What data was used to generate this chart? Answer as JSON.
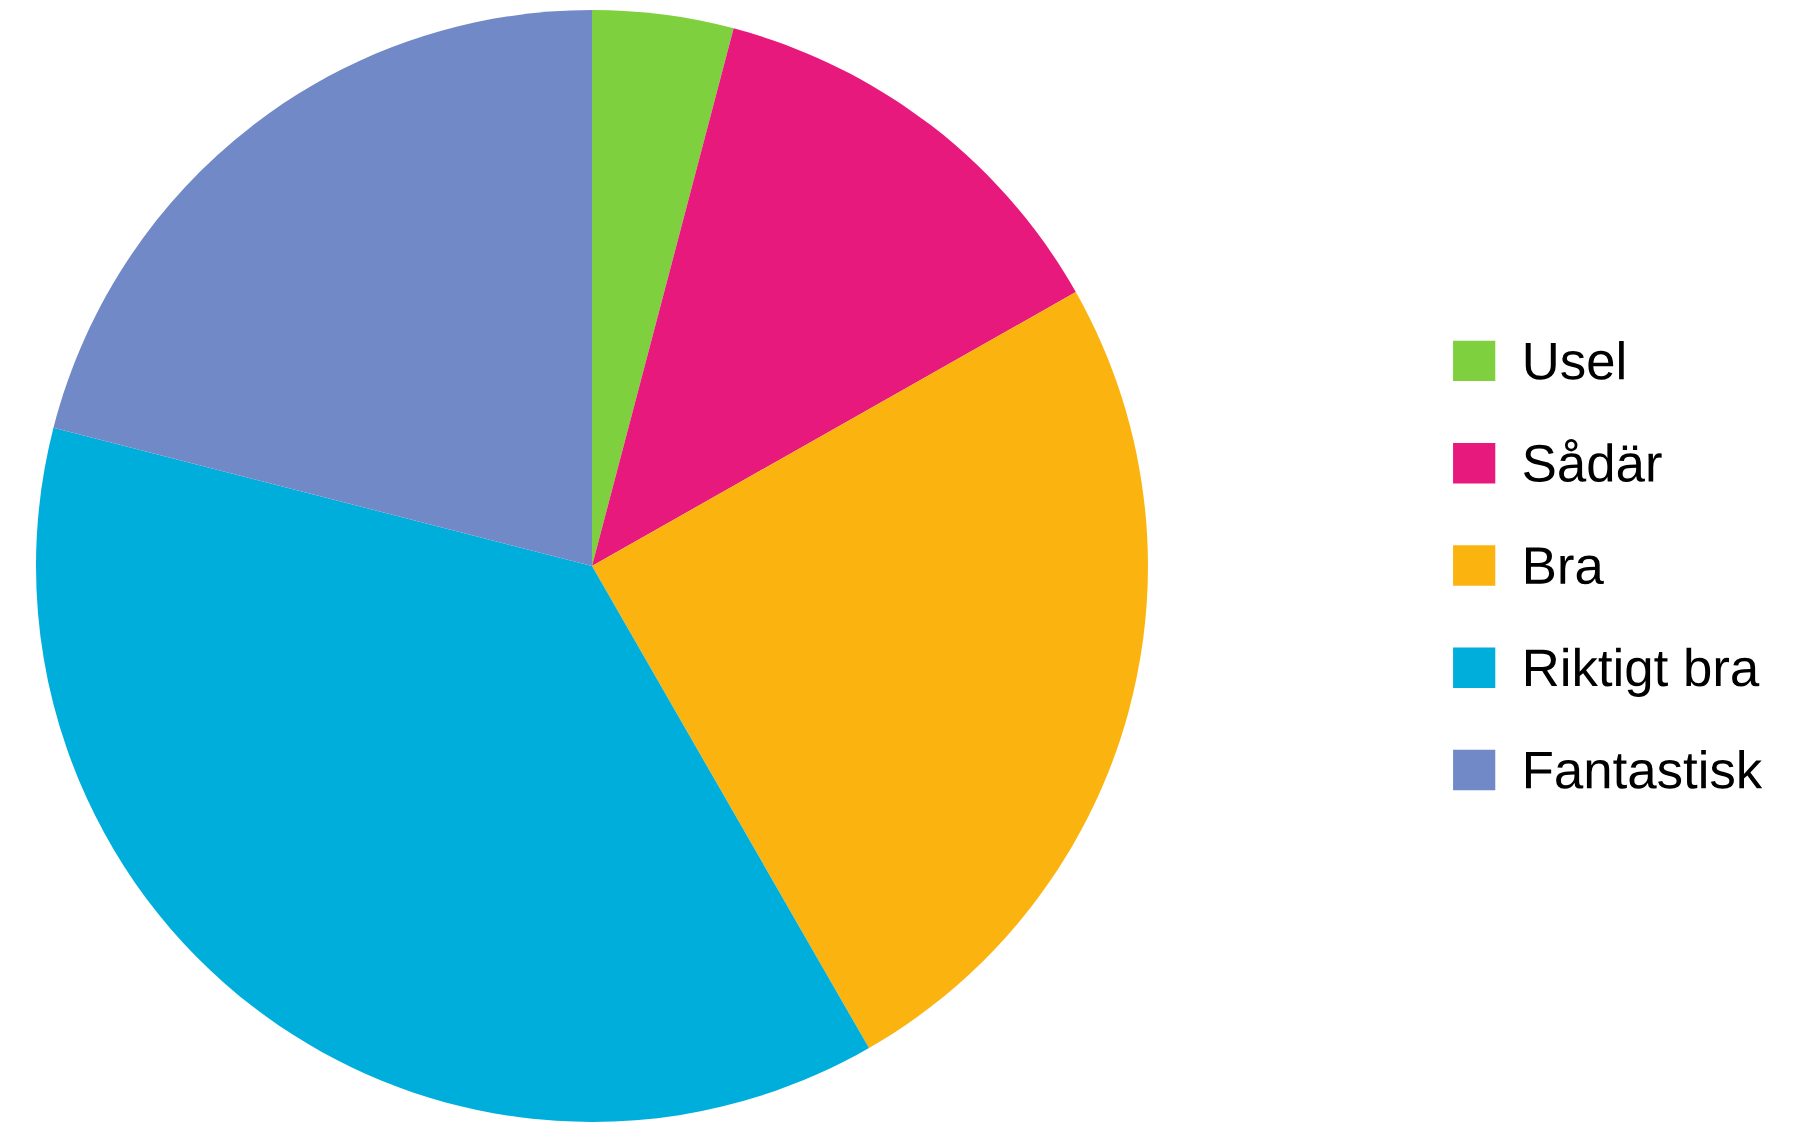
{
  "chart_data": {
    "type": "pie",
    "categories": [
      "Usel",
      "Sådär",
      "Bra",
      "Riktigt bra",
      "Fantastisk"
    ],
    "values": [
      4.1,
      12.7,
      24.9,
      37.3,
      21.0
    ],
    "colors": [
      "#7ed03f",
      "#e8197d",
      "#fbb40f",
      "#00aedb",
      "#7289c8"
    ],
    "legend": "right"
  }
}
